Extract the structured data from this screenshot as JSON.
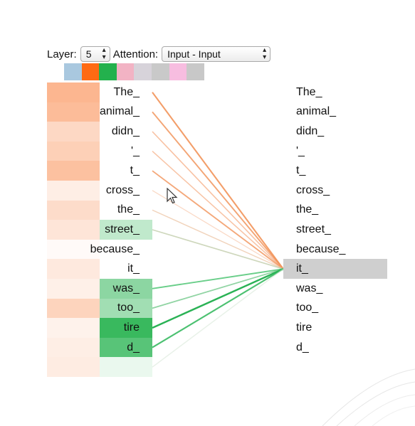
{
  "controls": {
    "layer_label": "Layer:",
    "layer_value": "5",
    "attention_label": "Attention:",
    "attention_value": "Input - Input"
  },
  "head_colors": [
    "#a9c8df",
    "#ff6a13",
    "#23b14d",
    "#f2b3c4",
    "#d7d3da",
    "#c9c9c9",
    "#f7bde0",
    "#c8c8c8"
  ],
  "selected_head_indices": [
    1,
    2
  ],
  "query_index": 9,
  "left_tokens": [
    {
      "text": "The_",
      "heat": 0.85,
      "green": 0
    },
    {
      "text": "animal_",
      "heat": 0.78,
      "green": 0
    },
    {
      "text": "didn_",
      "heat": 0.45,
      "green": 0
    },
    {
      "text": "'_",
      "heat": 0.55,
      "green": 0
    },
    {
      "text": "t_",
      "heat": 0.72,
      "green": 0
    },
    {
      "text": "cross_",
      "heat": 0.2,
      "green": 0
    },
    {
      "text": "the_",
      "heat": 0.4,
      "green": 0
    },
    {
      "text": "street_",
      "heat": 0.3,
      "green": 0.3
    },
    {
      "text": "because_",
      "heat": 0.05,
      "green": 0
    },
    {
      "text": "it_",
      "heat": 0.25,
      "green": 0
    },
    {
      "text": "was_",
      "heat": 0.18,
      "green": 0.55
    },
    {
      "text": "too_",
      "heat": 0.5,
      "green": 0.45
    },
    {
      "text": "tire",
      "heat": 0.15,
      "green": 0.95
    },
    {
      "text": "d_",
      "heat": 0.2,
      "green": 0.8
    },
    {
      "text": "",
      "heat": 0.22,
      "green": 0.1
    }
  ],
  "right_tokens": [
    "The_",
    "animal_",
    "didn_",
    "'_",
    "t_",
    "cross_",
    "the_",
    "street_",
    "because_",
    "it_",
    "was_",
    "too_",
    "tire",
    "d_"
  ],
  "attention_lines": [
    {
      "from": 0,
      "color": "#f08a4b",
      "weight": 0.8
    },
    {
      "from": 1,
      "color": "#f08a4b",
      "weight": 0.7
    },
    {
      "from": 2,
      "color": "#f4a070",
      "weight": 0.5
    },
    {
      "from": 3,
      "color": "#f4a070",
      "weight": 0.45
    },
    {
      "from": 4,
      "color": "#f08a4b",
      "weight": 0.65
    },
    {
      "from": 5,
      "color": "#f6b894",
      "weight": 0.3
    },
    {
      "from": 6,
      "color": "#e7b48c",
      "weight": 0.4
    },
    {
      "from": 7,
      "color": "#b7c49c",
      "weight": 0.55
    },
    {
      "from": 10,
      "color": "#3cbf66",
      "weight": 0.7
    },
    {
      "from": 11,
      "color": "#62c27d",
      "weight": 0.6
    },
    {
      "from": 12,
      "color": "#1fae4c",
      "weight": 1.0
    },
    {
      "from": 13,
      "color": "#2fb75a",
      "weight": 0.85
    },
    {
      "from": 14,
      "color": "#d8e8d8",
      "weight": 0.4
    }
  ]
}
